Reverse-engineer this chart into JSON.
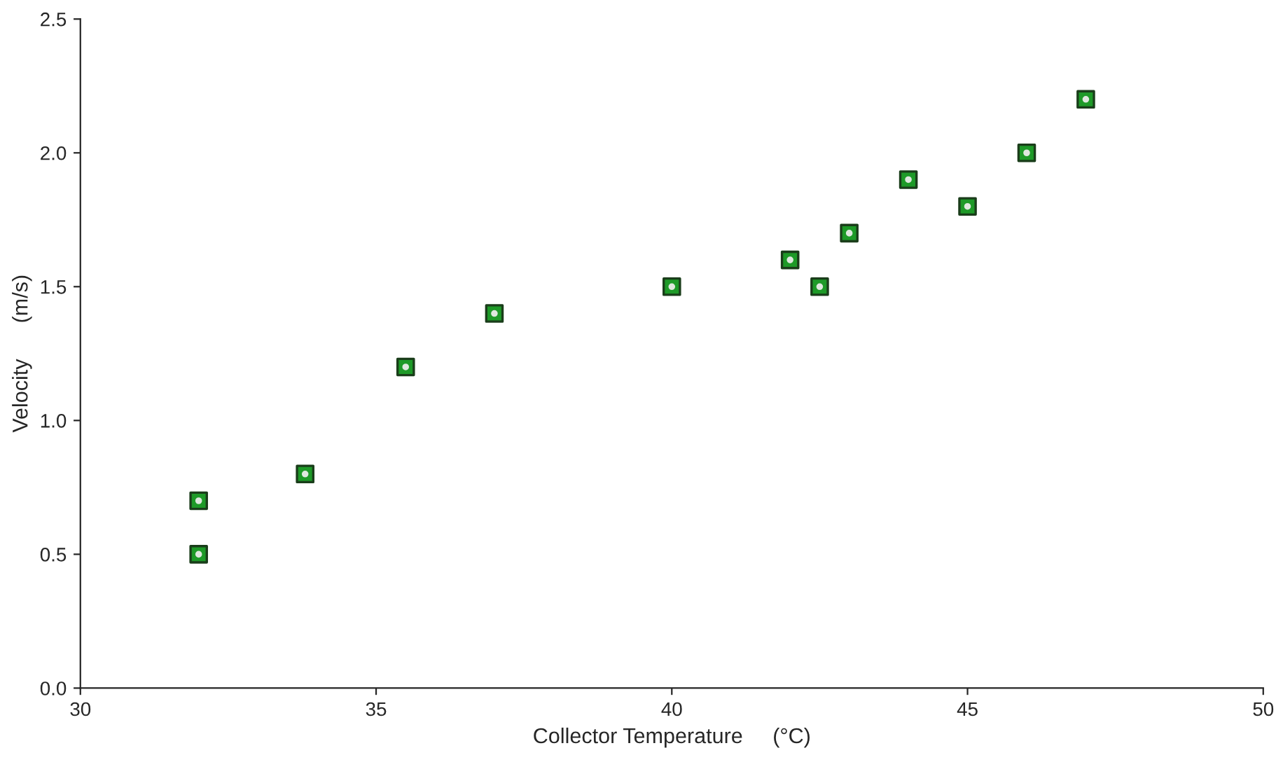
{
  "chart_data": {
    "type": "scatter",
    "xlabel": "Collector Temperature     (°C)",
    "ylabel": "Velocity      (m/s)",
    "x": [
      32,
      32,
      33.8,
      35.5,
      37,
      40,
      42,
      42.5,
      43,
      44,
      45,
      46,
      47
    ],
    "series": [
      {
        "color": "#1e9a28",
        "values": [
          0.7,
          0.5,
          0.8,
          1.2,
          1.4,
          1.5,
          1.6,
          1.5,
          1.7,
          1.9,
          1.8,
          2.0,
          2.2
        ]
      }
    ],
    "marker": "square",
    "xlim": [
      30,
      50
    ],
    "xticks": [
      30,
      35,
      40,
      45,
      50
    ],
    "ylim": [
      0,
      2.5
    ],
    "yticks": [
      {
        "value": 0,
        "label": "0.0"
      },
      0.5,
      {
        "value": 1,
        "label": "1.0"
      },
      1.5,
      {
        "value": 2,
        "label": "2.0"
      },
      2.5
    ],
    "grid": false,
    "legend": false
  }
}
